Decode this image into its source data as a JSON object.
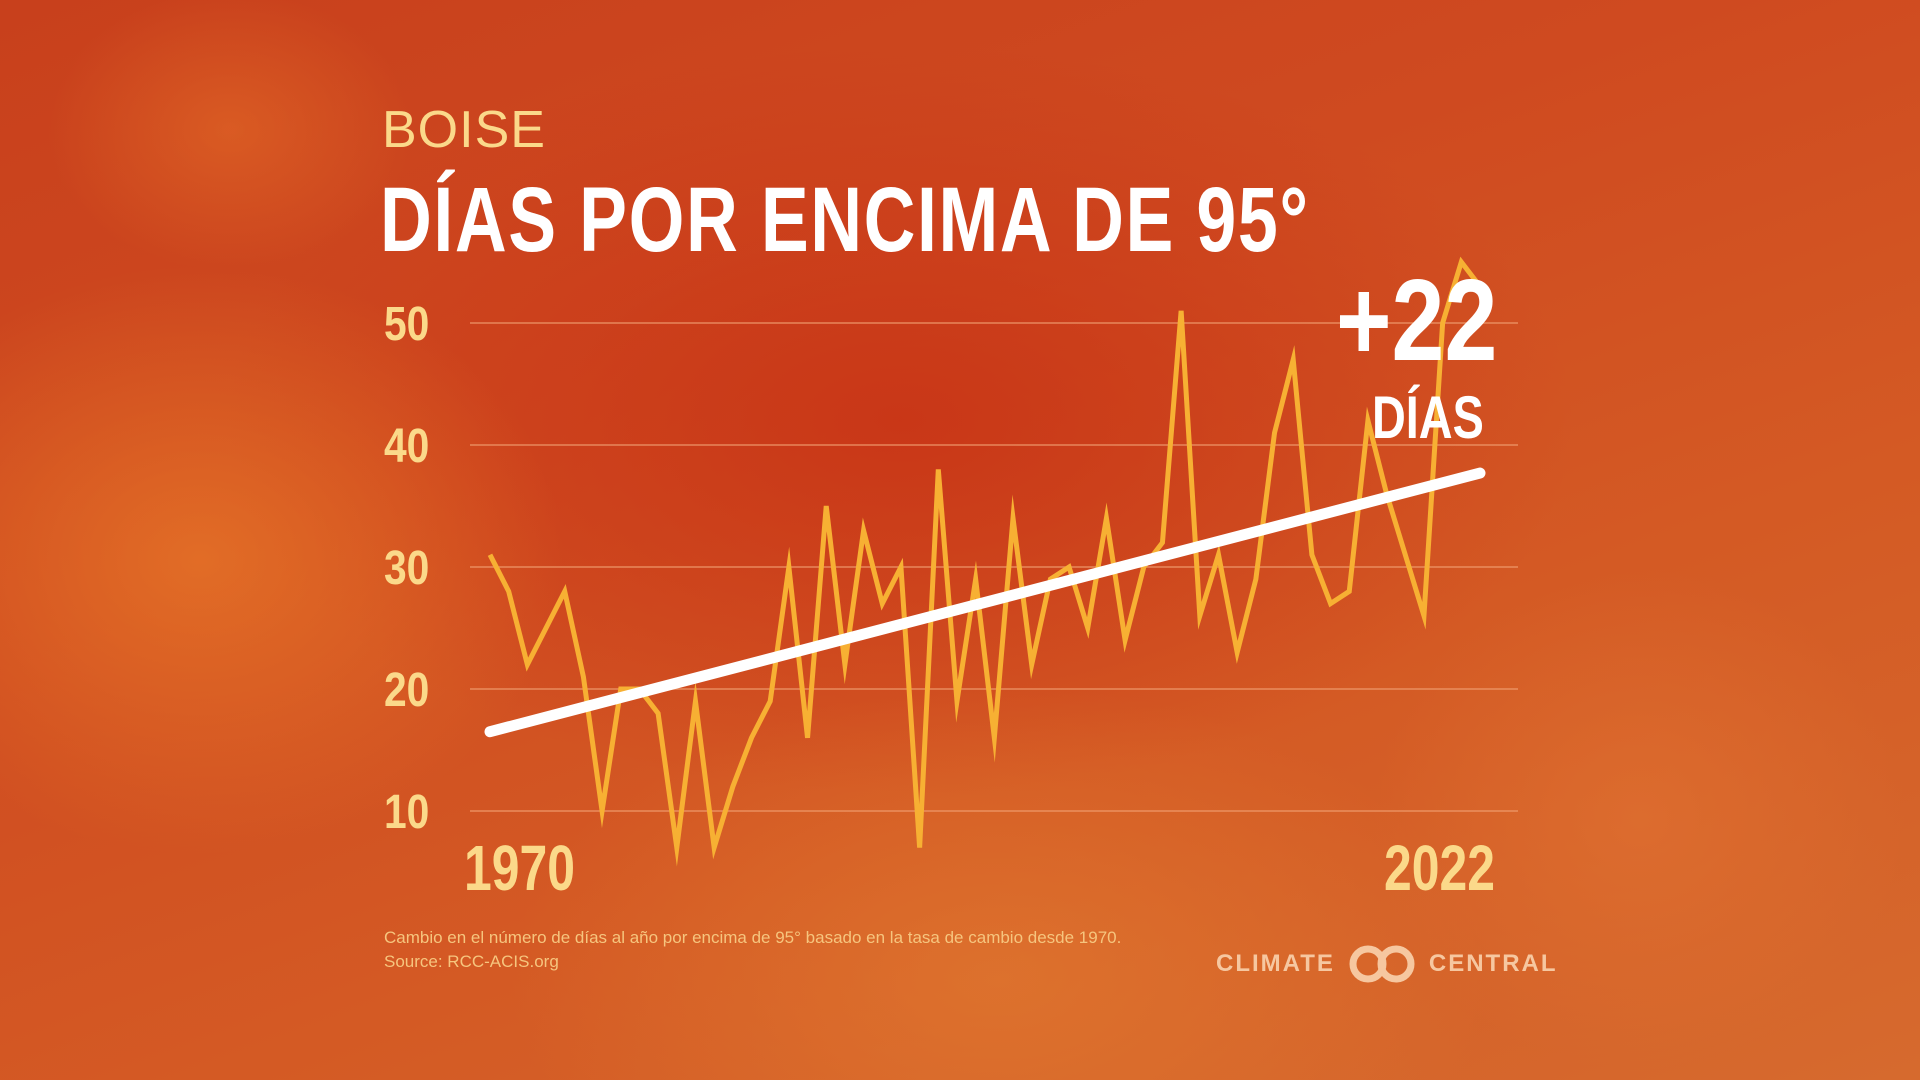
{
  "header": {
    "city": "BOISE",
    "title": "DÍAS POR ENCIMA DE 95°"
  },
  "badge": {
    "value": "+22",
    "unit": "DÍAS"
  },
  "caption": {
    "line1": "Cambio en el número de días al año por encima de 95° basado en la tasa de cambio desde 1970.",
    "line2": "Source: RCC-ACIS.org"
  },
  "brand": {
    "left": "CLIMATE",
    "right": "CENTRAL"
  },
  "colors": {
    "line": "#f7b033",
    "trend": "#ffffff",
    "tick": "#fbd98a",
    "grid": "#f1a072"
  },
  "chart_data": {
    "type": "line",
    "title": "DÍAS POR ENCIMA DE 95°",
    "xlabel": "",
    "ylabel": "",
    "xlim": [
      1970,
      2023
    ],
    "ylim": [
      5,
      55
    ],
    "yticks": [
      10,
      20,
      30,
      40,
      50
    ],
    "xtick_labels": [
      "1970",
      "2022"
    ],
    "grid": true,
    "legend": "none",
    "series": [
      {
        "name": "Días por encima de 95°",
        "x": [
          1970,
          1971,
          1972,
          1973,
          1974,
          1975,
          1976,
          1977,
          1978,
          1979,
          1980,
          1981,
          1982,
          1983,
          1984,
          1985,
          1986,
          1987,
          1988,
          1989,
          1990,
          1991,
          1992,
          1993,
          1994,
          1995,
          1996,
          1997,
          1998,
          1999,
          2000,
          2001,
          2002,
          2003,
          2004,
          2005,
          2006,
          2007,
          2008,
          2009,
          2010,
          2011,
          2012,
          2013,
          2014,
          2015,
          2016,
          2017,
          2018,
          2019,
          2020,
          2021,
          2022,
          2023
        ],
        "values": [
          31,
          28,
          22,
          25,
          28,
          21,
          10,
          20,
          20,
          18,
          7,
          19,
          7,
          12,
          16,
          19,
          30,
          16,
          35,
          22,
          33,
          27,
          30,
          7,
          38,
          19,
          29,
          16,
          34,
          22,
          29,
          30,
          25,
          34,
          24,
          30,
          32,
          51,
          26,
          31,
          23,
          29,
          41,
          47,
          31,
          27,
          28,
          42,
          36,
          31,
          26,
          50,
          55,
          53
        ]
      },
      {
        "name": "Tendencia",
        "x": [
          1970,
          2023
        ],
        "values": [
          16.5,
          37.7
        ]
      }
    ]
  }
}
